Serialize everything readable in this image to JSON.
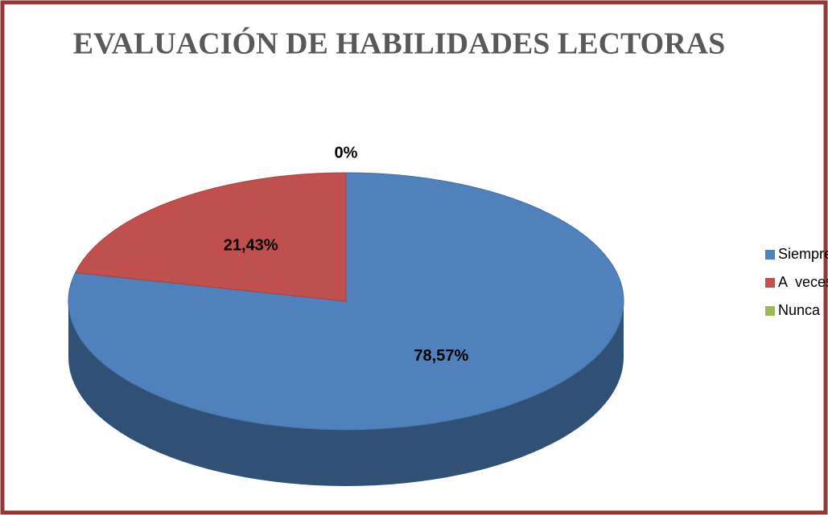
{
  "chart_data": {
    "type": "pie",
    "title": "EVALUACIÓN DE HABILIDADES LECTORAS",
    "categories": [
      "Siempre",
      "A  veces",
      "Nunca"
    ],
    "values": [
      78.57,
      21.43,
      0
    ],
    "value_labels": [
      "78,57%",
      "21,43%",
      "0%"
    ],
    "colors": [
      "#4f81bd",
      "#c0504d",
      "#9bbb59"
    ],
    "legend": "right"
  }
}
